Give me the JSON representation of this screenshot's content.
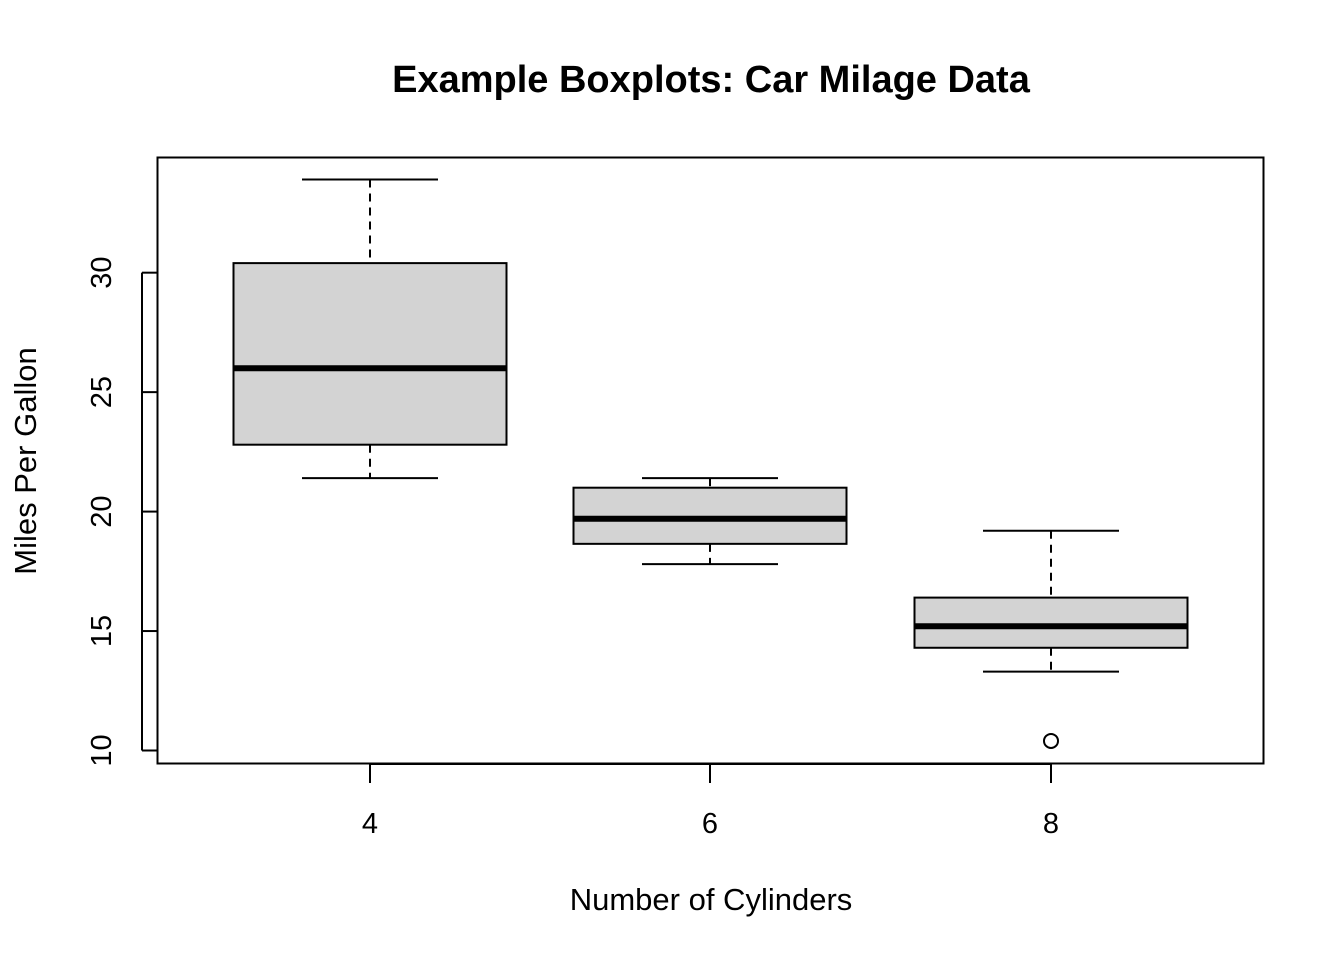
{
  "chart_data": {
    "type": "boxplot",
    "title": "Example Boxplots: Car Milage Data",
    "xlabel": "Number of Cylinders",
    "ylabel": "Miles Per Gallon",
    "categories": [
      "4",
      "6",
      "8"
    ],
    "x_tick_labels": [
      "4",
      "6",
      "8"
    ],
    "y_ticks": [
      10,
      15,
      20,
      25,
      30
    ],
    "y_tick_labels": [
      "10",
      "15",
      "20",
      "25",
      "30"
    ],
    "ylim": [
      9.5,
      34.9
    ],
    "grid": false,
    "box_fill": "#d3d3d3",
    "boxes": [
      {
        "category": "4",
        "whisker_low": 21.4,
        "q1": 22.8,
        "median": 26.0,
        "q3": 30.4,
        "whisker_high": 33.9,
        "outliers": []
      },
      {
        "category": "6",
        "whisker_low": 17.8,
        "q1": 18.65,
        "median": 19.7,
        "q3": 21.0,
        "whisker_high": 21.4,
        "outliers": []
      },
      {
        "category": "8",
        "whisker_low": 13.3,
        "q1": 14.3,
        "median": 15.2,
        "q3": 16.4,
        "whisker_high": 19.2,
        "outliers": [
          10.4
        ]
      }
    ]
  }
}
